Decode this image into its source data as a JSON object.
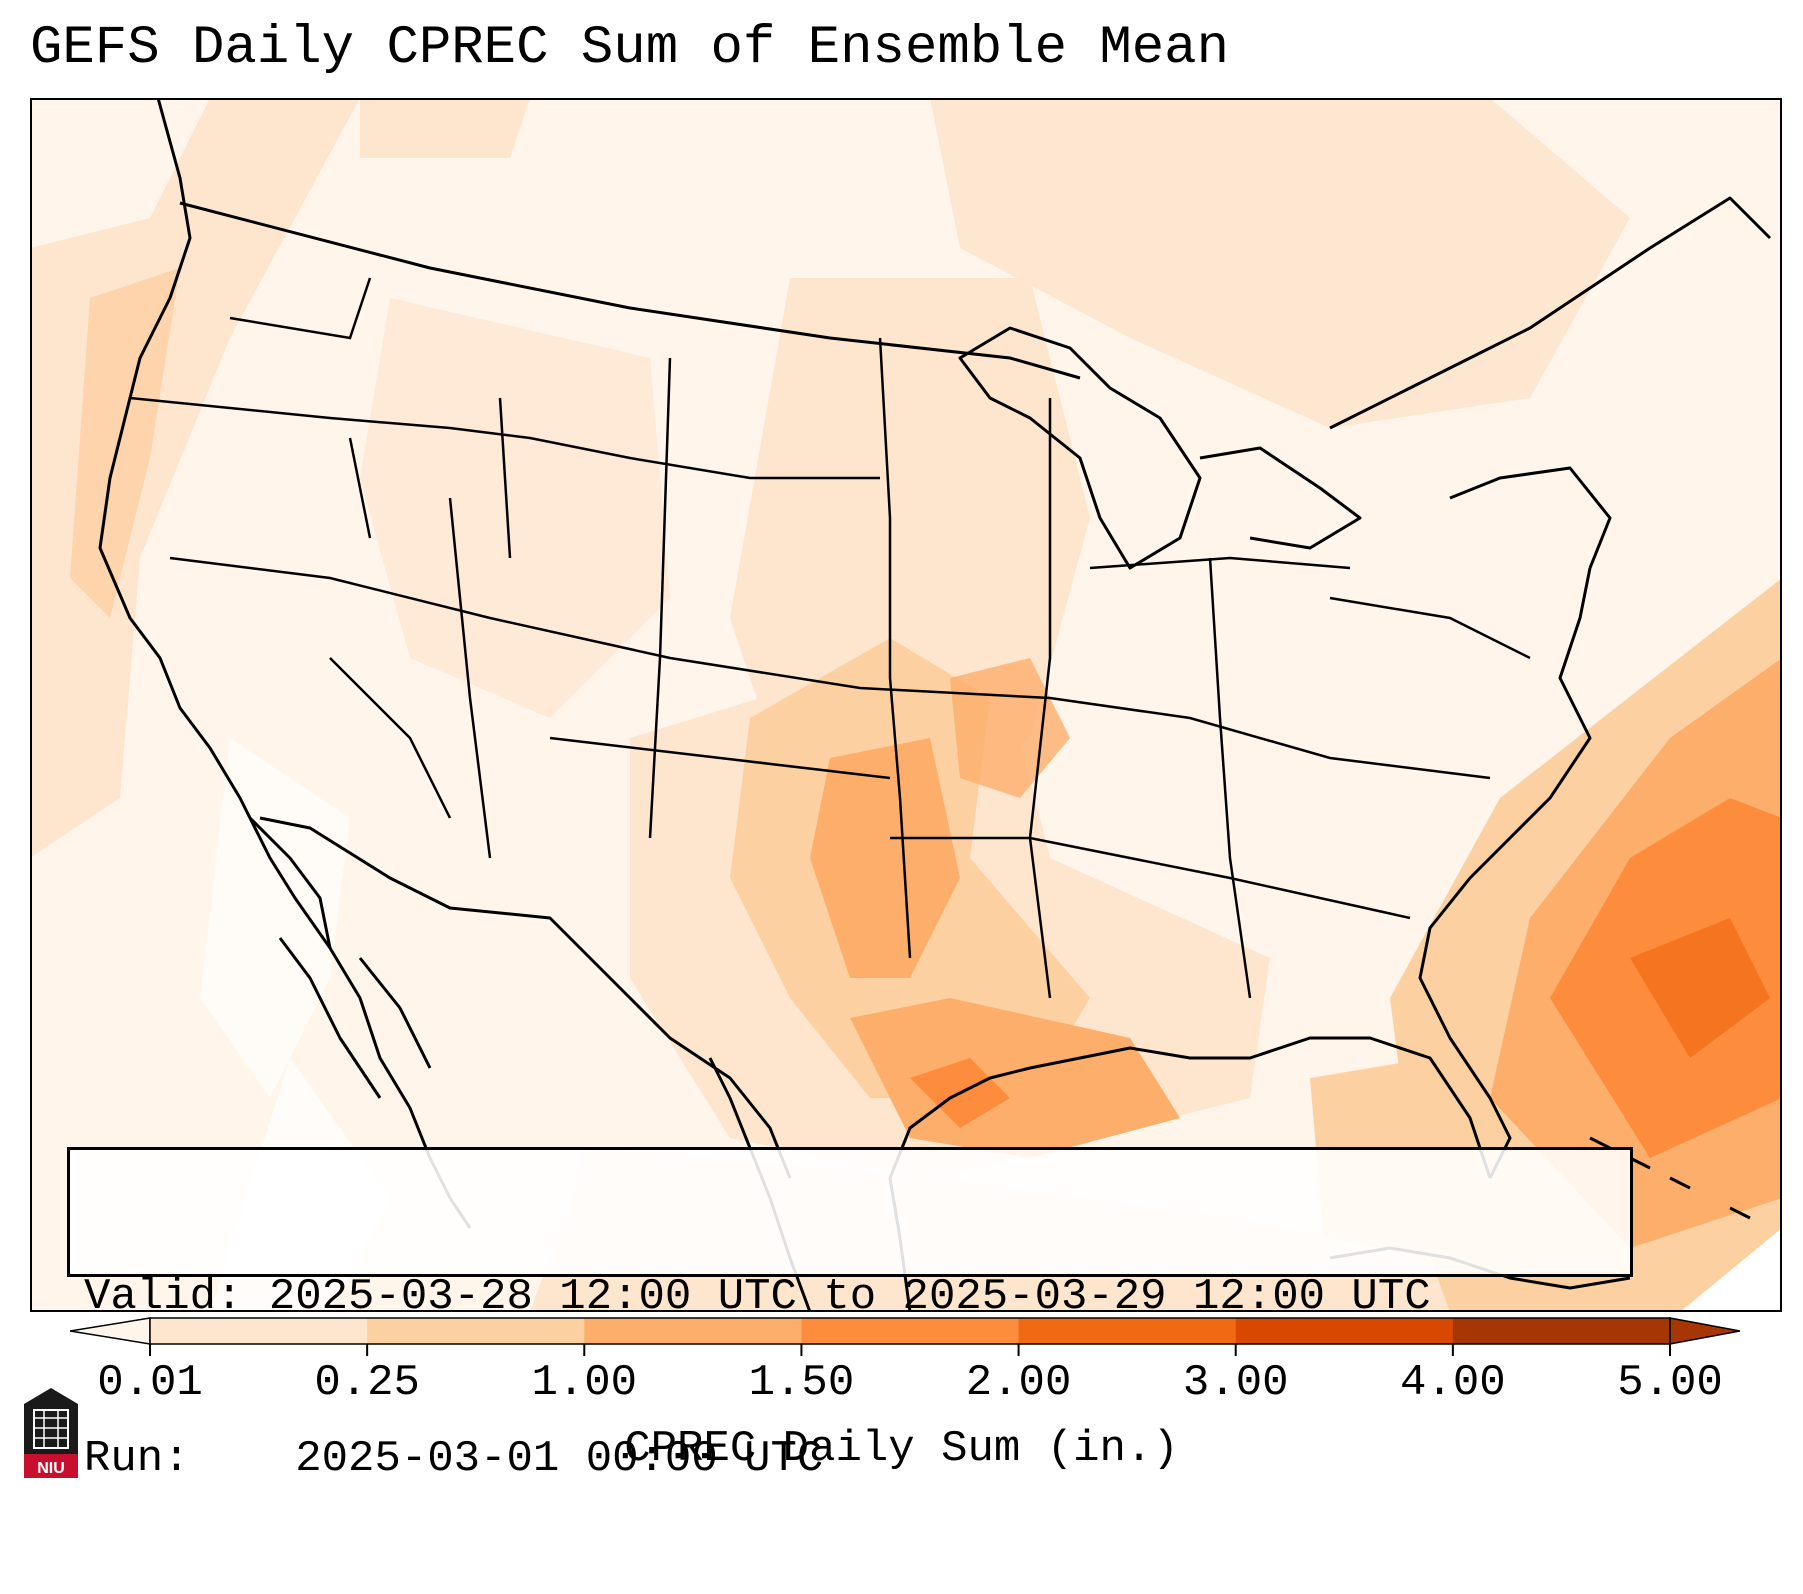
{
  "title": "GEFS Daily CPREC Sum of Ensemble Mean",
  "info": {
    "valid_label": "Valid:",
    "valid_value": "2025-03-28 12:00 UTC to 2025-03-29 12:00 UTC",
    "run_label": "Run:",
    "run_value": "2025-03-01 00:00 UTC"
  },
  "colorbar": {
    "label": "CPREC Daily Sum (in.)",
    "ticks": [
      "0.01",
      "0.25",
      "1.00",
      "1.50",
      "2.00",
      "3.00",
      "4.00",
      "5.00"
    ],
    "colors": [
      "#fff5eb",
      "#fee6ce",
      "#fdd0a2",
      "#fdae6b",
      "#fd8d3c",
      "#f16913",
      "#d94801",
      "#a63603"
    ],
    "extend": "both"
  },
  "logo": {
    "text": "NIU",
    "background": "#c8102e"
  },
  "colors": {
    "frame": "#000000",
    "background": "#ffffff",
    "ocean_low": "#fff5eb"
  }
}
